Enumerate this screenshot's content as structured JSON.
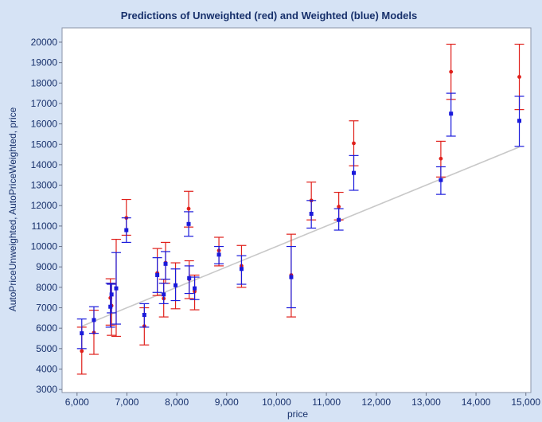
{
  "chart_data": {
    "type": "scatter",
    "title": "Predictions of Unweighted (red) and Weighted (blue) Models",
    "xlabel": "price",
    "ylabel": "AutoPriceUnweighted, AutoPriceWeighted, price",
    "xlim": [
      5700,
      15100
    ],
    "ylim": [
      2850,
      20700
    ],
    "x_ticks": [
      6000,
      7000,
      8000,
      9000,
      10000,
      11000,
      12000,
      13000,
      14000,
      15000
    ],
    "x_tick_labels": [
      "6,000",
      "7,000",
      "8,000",
      "9,000",
      "10,000",
      "11,000",
      "12,000",
      "13,000",
      "14,000",
      "15,000"
    ],
    "y_ticks": [
      3000,
      4000,
      5000,
      6000,
      7000,
      8000,
      9000,
      10000,
      11000,
      12000,
      13000,
      14000,
      15000,
      16000,
      17000,
      18000,
      19000,
      20000
    ],
    "y_tick_labels": [
      "3000",
      "4000",
      "5000",
      "6000",
      "7000",
      "8000",
      "9000",
      "10000",
      "11000",
      "12000",
      "13000",
      "14000",
      "15000",
      "16000",
      "17000",
      "18000",
      "19000",
      "20000"
    ],
    "grid": false,
    "colors": {
      "unweighted": "#e0201b",
      "weighted": "#1a1adb",
      "identity": "#c8c8c8"
    },
    "series": [
      {
        "points": [
          {
            "x": 6095,
            "y": 4880,
            "lo": 3750,
            "hi": 6050
          },
          {
            "x": 6338,
            "y": 5780,
            "lo": 4720,
            "hi": 6880
          },
          {
            "x": 6669,
            "y": 7480,
            "lo": 6150,
            "hi": 8420
          },
          {
            "x": 6692,
            "y": 7100,
            "lo": 5650,
            "hi": 8200
          },
          {
            "x": 6785,
            "y": 7950,
            "lo": 5600,
            "hi": 10350
          },
          {
            "x": 6989,
            "y": 11400,
            "lo": 10550,
            "hi": 12300
          },
          {
            "x": 7349,
            "y": 6100,
            "lo": 5180,
            "hi": 7000
          },
          {
            "x": 7609,
            "y": 8700,
            "lo": 7600,
            "hi": 9900
          },
          {
            "x": 7738,
            "y": 7450,
            "lo": 6550,
            "hi": 8400
          },
          {
            "x": 7775,
            "y": 9200,
            "lo": 8200,
            "hi": 10200
          },
          {
            "x": 7975,
            "y": 8100,
            "lo": 6950,
            "hi": 9200
          },
          {
            "x": 8238,
            "y": 11850,
            "lo": 10950,
            "hi": 12700
          },
          {
            "x": 8249,
            "y": 8400,
            "lo": 7450,
            "hi": 9300
          },
          {
            "x": 8358,
            "y": 7800,
            "lo": 6900,
            "hi": 8600
          },
          {
            "x": 8845,
            "y": 9800,
            "lo": 9050,
            "hi": 10450
          },
          {
            "x": 9298,
            "y": 9050,
            "lo": 8000,
            "hi": 10050
          },
          {
            "x": 10295,
            "y": 8600,
            "lo": 6550,
            "hi": 10600
          },
          {
            "x": 10698,
            "y": 12250,
            "lo": 11300,
            "hi": 13150
          },
          {
            "x": 11248,
            "y": 11950,
            "lo": 11300,
            "hi": 12650
          },
          {
            "x": 11549,
            "y": 15050,
            "lo": 13950,
            "hi": 16150
          },
          {
            "x": 13295,
            "y": 14300,
            "lo": 13400,
            "hi": 15150
          },
          {
            "x": 13499,
            "y": 18550,
            "lo": 17200,
            "hi": 19900
          },
          {
            "x": 14869,
            "y": 18300,
            "lo": 16700,
            "hi": 19900
          }
        ]
      },
      {
        "points": [
          {
            "x": 6095,
            "y": 5750,
            "lo": 5000,
            "hi": 6450
          },
          {
            "x": 6338,
            "y": 6400,
            "lo": 5750,
            "hi": 7050
          },
          {
            "x": 6669,
            "y": 7050,
            "lo": 6050,
            "hi": 8200
          },
          {
            "x": 6692,
            "y": 7650,
            "lo": 6750,
            "hi": 8150
          },
          {
            "x": 6785,
            "y": 7950,
            "lo": 6200,
            "hi": 9700
          },
          {
            "x": 6989,
            "y": 10800,
            "lo": 10200,
            "hi": 11400
          },
          {
            "x": 7349,
            "y": 6650,
            "lo": 6050,
            "hi": 7200
          },
          {
            "x": 7609,
            "y": 8600,
            "lo": 7750,
            "hi": 9450
          },
          {
            "x": 7738,
            "y": 7650,
            "lo": 7200,
            "hi": 8200
          },
          {
            "x": 7775,
            "y": 9150,
            "lo": 8400,
            "hi": 9750
          },
          {
            "x": 7975,
            "y": 8100,
            "lo": 7350,
            "hi": 8900
          },
          {
            "x": 8238,
            "y": 11100,
            "lo": 10500,
            "hi": 11700
          },
          {
            "x": 8249,
            "y": 8450,
            "lo": 7700,
            "hi": 9050
          },
          {
            "x": 8358,
            "y": 7950,
            "lo": 7400,
            "hi": 8500
          },
          {
            "x": 8845,
            "y": 9600,
            "lo": 9150,
            "hi": 10000
          },
          {
            "x": 9298,
            "y": 8900,
            "lo": 8150,
            "hi": 9550
          },
          {
            "x": 10295,
            "y": 8500,
            "lo": 7000,
            "hi": 10000
          },
          {
            "x": 10698,
            "y": 11600,
            "lo": 10900,
            "hi": 12250
          },
          {
            "x": 11248,
            "y": 11300,
            "lo": 10800,
            "hi": 11850
          },
          {
            "x": 11549,
            "y": 13600,
            "lo": 12750,
            "hi": 14450
          },
          {
            "x": 13295,
            "y": 13250,
            "lo": 12550,
            "hi": 13900
          },
          {
            "x": 13499,
            "y": 16500,
            "lo": 15400,
            "hi": 17500
          },
          {
            "x": 14869,
            "y": 16150,
            "lo": 14900,
            "hi": 17350
          }
        ]
      }
    ],
    "identity_line": {
      "x": [
        6095,
        14869
      ],
      "y": [
        6095,
        14869
      ]
    }
  }
}
